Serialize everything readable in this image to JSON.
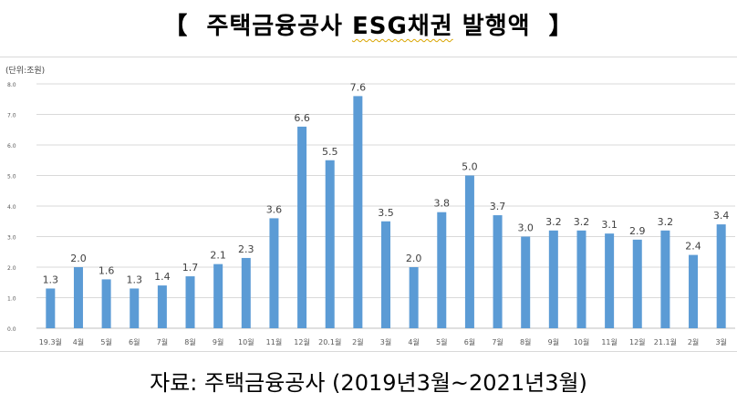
{
  "header": {
    "bracket_left": "【",
    "title_main": "주택금융공사",
    "title_esg": "ESG채권",
    "title_tail": "발행액",
    "bracket_right": "】"
  },
  "unit_label": "(단위:조원)",
  "source": "자료:  주택금융공사  (2019년3월~2021년3월)",
  "colors": {
    "bar": "#5b9bd5",
    "grid": "#d9d9d9",
    "axis": "#bfbfbf",
    "text": "#595959"
  },
  "chart_data": {
    "type": "bar",
    "categories": [
      "19.3월",
      "4월",
      "5월",
      "6월",
      "7월",
      "8월",
      "9월",
      "10월",
      "11월",
      "12월",
      "20.1월",
      "2월",
      "3월",
      "4월",
      "5월",
      "6월",
      "7월",
      "8월",
      "9월",
      "10월",
      "11월",
      "12월",
      "21.1월",
      "2월",
      "3월"
    ],
    "values": [
      1.3,
      2.0,
      1.6,
      1.3,
      1.4,
      1.7,
      2.1,
      2.3,
      3.6,
      6.6,
      5.5,
      7.6,
      3.5,
      2.0,
      3.8,
      5.0,
      3.7,
      3.0,
      3.2,
      3.2,
      3.1,
      2.9,
      3.2,
      2.4,
      3.4
    ],
    "value_labels": [
      "1.3",
      "2.0",
      "1.6",
      "1.3",
      "1.4",
      "1.7",
      "2.1",
      "2.3",
      "3.6",
      "6.6",
      "5.5",
      "7.6",
      "3.5",
      "2.0",
      "3.8",
      "5.0",
      "3.7",
      "3.0",
      "3.2",
      "3.2",
      "3.1",
      "2.9",
      "3.2",
      "2.4",
      "3.4"
    ],
    "yticks": [
      "0.0",
      "1.0",
      "2.0",
      "3.0",
      "4.0",
      "5.0",
      "6.0",
      "7.0",
      "8.0"
    ],
    "ylim": [
      0,
      8
    ],
    "grid": true
  }
}
